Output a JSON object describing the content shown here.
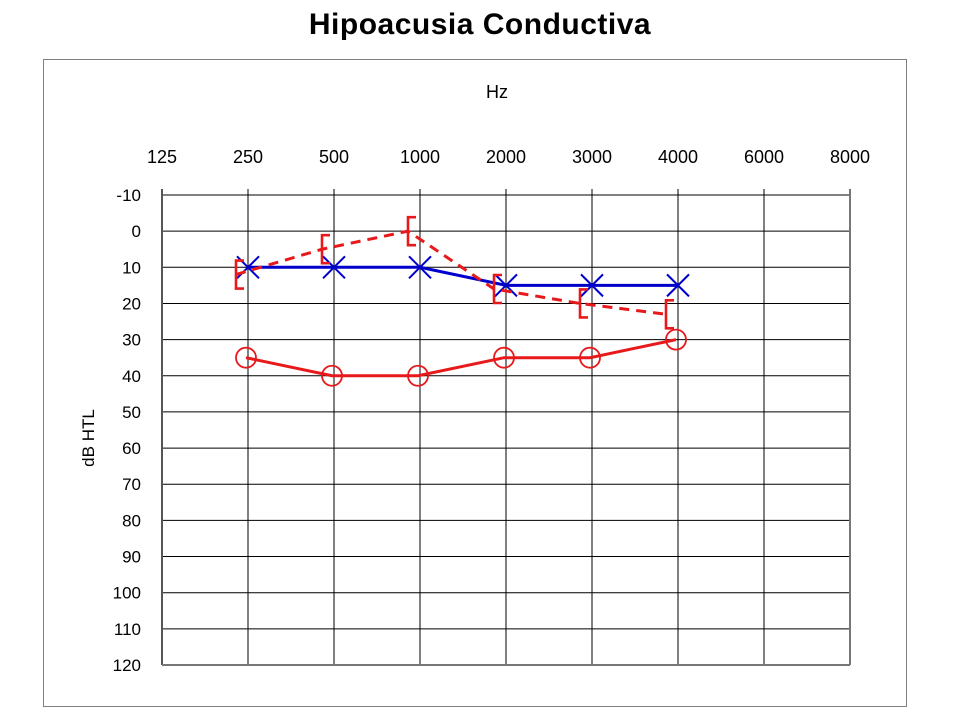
{
  "chart_data": {
    "type": "line",
    "title": "Hipoacusia Conductiva",
    "xlabel": "Hz",
    "ylabel": "dB HTL",
    "x_categories": [
      "125",
      "250",
      "500",
      "1000",
      "2000",
      "3000",
      "4000",
      "6000",
      "8000"
    ],
    "y_ticks": [
      -10,
      0,
      10,
      20,
      30,
      40,
      50,
      60,
      70,
      80,
      90,
      100,
      110,
      120
    ],
    "ylim": [
      -10,
      120
    ],
    "y_inverted": true,
    "grid": true,
    "series": [
      {
        "marker": "x",
        "line_style": "solid",
        "color": "#0000cc",
        "x": [
          "250",
          "500",
          "1000",
          "2000",
          "3000",
          "4000"
        ],
        "values": [
          10,
          10,
          10,
          15,
          15,
          15
        ]
      },
      {
        "marker": "bracket",
        "line_style": "dashed",
        "color": "#e8191b",
        "x": [
          "250",
          "500",
          "1000",
          "2000",
          "3000",
          "4000"
        ],
        "values": [
          12,
          5,
          0,
          16,
          20,
          23
        ]
      },
      {
        "marker": "circle",
        "line_style": "solid",
        "color": "#e8191b",
        "x": [
          "250",
          "500",
          "1000",
          "2000",
          "3000",
          "4000"
        ],
        "values": [
          35,
          40,
          40,
          35,
          35,
          30
        ]
      }
    ]
  }
}
